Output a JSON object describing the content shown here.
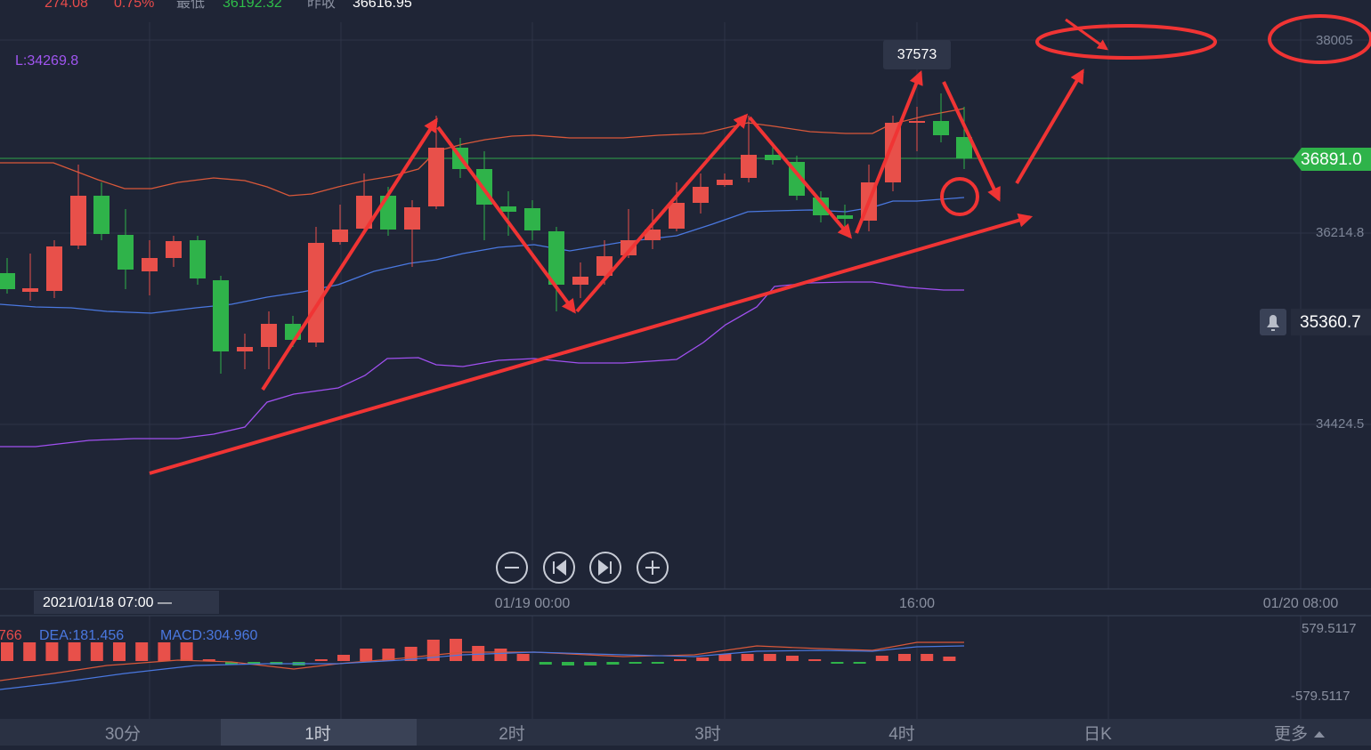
{
  "header": {
    "change": "274.08",
    "percent": "0.75%",
    "low_label": "最低",
    "low": "36192.32",
    "prev_close_label": "昨收",
    "prev_close": "36616.95"
  },
  "indicator": {
    "lower": "L:34269.8"
  },
  "chart": {
    "peak_label": "37573",
    "price_axis": [
      "38005",
      "36214.8",
      "34424.5"
    ],
    "current_price": "36891.0",
    "alert_price": "35360.7"
  },
  "time_axis": {
    "cursor": "2021/01/18 07:00 —",
    "labels": [
      "01/19 00:00",
      "16:00",
      "01/20 08:00"
    ]
  },
  "macd": {
    "dif": "766",
    "dea": "DEA:181.456",
    "macd": "MACD:304.960",
    "top": "579.5117",
    "bottom": "-579.5117"
  },
  "tabs": [
    "30分",
    "1时",
    "2时",
    "3时",
    "4时",
    "日K",
    "更多"
  ]
}
